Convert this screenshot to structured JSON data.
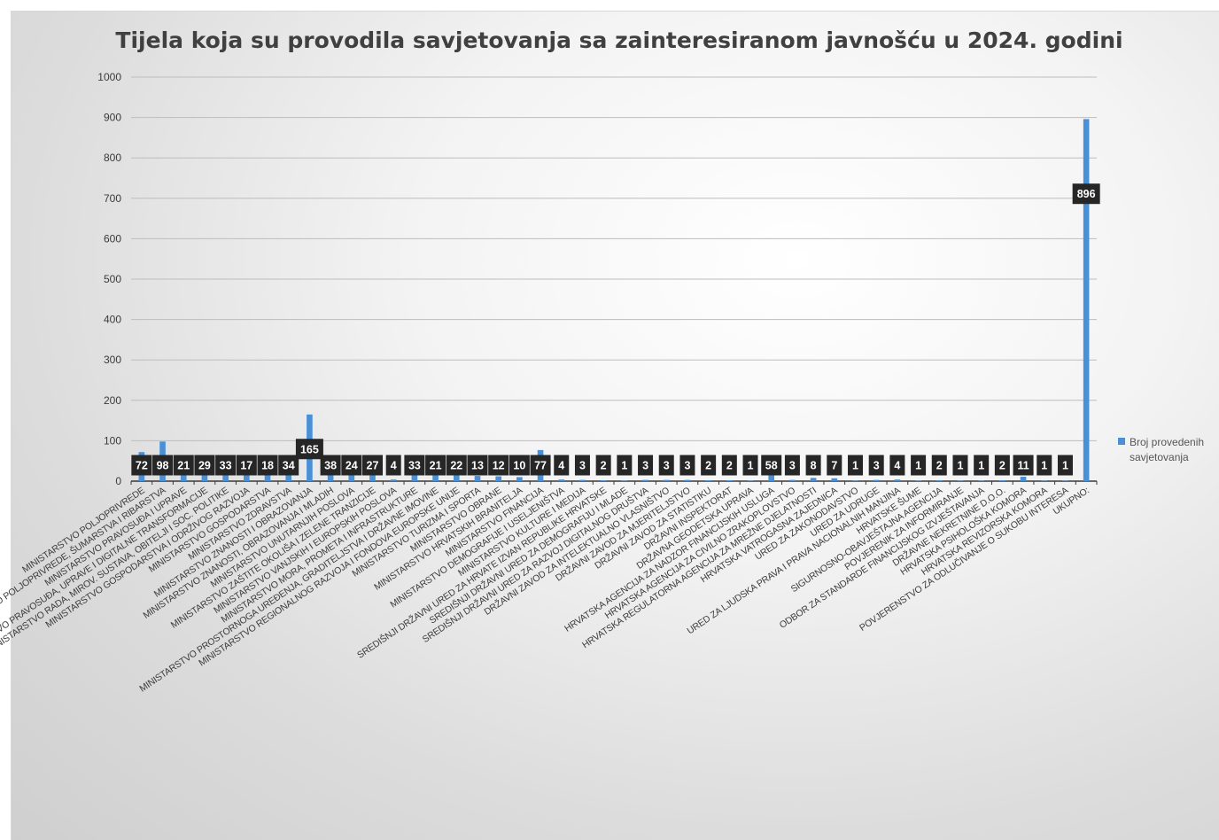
{
  "chart_data": {
    "type": "bar",
    "title": "Tijela koja su provodila savjetovanja sa zainteresiranom javnošću u 2024. godini",
    "xlabel": "",
    "ylabel": "",
    "ylim": [
      0,
      1000
    ],
    "yticks": [
      "0",
      "100",
      "200",
      "300",
      "400",
      "500",
      "600",
      "700",
      "800",
      "900",
      "1000"
    ],
    "grid": true,
    "legend_position": "right",
    "bar_color": "#4a90d6",
    "label_bg": "#262626",
    "series": [
      {
        "name": "Broj provedenih savjetovanja",
        "values": [
          72,
          98,
          21,
          29,
          33,
          17,
          18,
          34,
          165,
          38,
          24,
          27,
          4,
          33,
          21,
          22,
          13,
          12,
          10,
          77,
          4,
          3,
          2,
          1,
          3,
          3,
          3,
          2,
          2,
          1,
          58,
          3,
          8,
          7,
          1,
          3,
          4,
          1,
          2,
          1,
          1,
          2,
          11,
          1,
          1,
          896
        ]
      }
    ],
    "categories": [
      "MINISTARSTVO POLJOPRIVREDE",
      "MINISTARSTVO POLJOPRIVREDE, ŠUMARSTVA I RIBARSTVA",
      "MINISTARSTVO PRAVOSUĐA I UPRAVE",
      "MINISTARSTVO PRAVOSUĐA, UPRAVE I DIGITALNE TRANSFORMACIJE",
      "MINISTARSTVO RADA, MIROV. SUSTAVA, OBITELJI I SOC. POLITIKE",
      "MINISTARSTVO GOSPODARSTVA I ODRŽIVOG RAZVOJA",
      "MINISTARSTVO GOSPODARSTVA",
      "MINISTARSTVO ZDRAVSTVA",
      "MINISTARSTVO ZNANOSTI I OBRAZOVANJA",
      "MINISTARSTVO ZNANOSTI, OBRAZOVANJA I MLADIH",
      "MINISTARSTVO UNUTARNJIH POSLOVA",
      "MINISTARSTVO ZAŠTITE OKOLIŠA I ZELENE TRANZICIJE",
      "MINISTARSTVO VANJSKIH I EUROPSKIH POSLOVA",
      "MINISTARSTVO MORA, PROMETA I INFRASTRUKTURE",
      "MINISTARSTVO PROSTORNOGA UREĐENJA, GRADITELJSTVA I DRŽAVNE IMOVINE",
      "MINISTARSTVO REGIONALNOG RAZVOJA I FONDOVA EUROPSKE UNIJE",
      "MINISTARSTVO TURIZMA I SPORTA",
      "MINISTARSTVO OBRANE",
      "MINISTARSTVO HRVATSKIH BRANITELJA",
      "MINISTARSTVO FINANCIJA",
      "MINISTARSTVO DEMOGRAFIJE I USELJENIŠTVA",
      "MINISTARSTVO KULTURE I MEDIJA",
      "SREDIŠNJI DRŽAVNI URED ZA HRVATE IZVAN REPUBLIKE HRVATSKE",
      "SREDIŠNJI DRŽAVNI URED ZA DEMOGRAFIJU I MLADE",
      "SREDIŠNJI DRŽAVNI URED ZA RAZVOJ DIGITALNOG DRUŠTVA",
      "DRŽAVNI ZAVOD ZA INTELEKTUALNO VLASNIŠTVO",
      "DRŽAVNI ZAVOD ZA MJERITELJSTVO",
      "DRŽAVNI ZAVOD ZA STATISTIKU",
      "DRŽAVNI INSPEKTORAT",
      "DRŽAVNA GEODETSKA UPRAVA",
      "HRVATSKA AGENCIJA ZA NADZOR FINANCIJSKIH USLUGA",
      "HRVATSKA AGENCIJA ZA CIVILNO ZRAKOPLOVSTVO",
      "HRVATSKA REGULATORNA AGENCIJA ZA MREŽNE DJELATNOSTI",
      "HRVATSKA VATROGASNA ZAJEDNICA",
      "URED ZA ZAKONODAVSTVO",
      "URED ZA UDRUGE",
      "URED ZA LJUDSKA PRAVA I PRAVA NACIONALNIH MANJINA",
      "HRVATSKE ŠUME",
      "SIGURNOSNO-OBAVJEŠTAJNA AGENCIJA",
      "POVJERENIK ZA INFORMIRANJE",
      "ODBOR ZA STANDARDE FINANCIJSKOG IZVJEŠTAVANJA",
      "DRŽAVNE NEKRETNINE D.O.O.",
      "HRVATSKA PSIHOLOŠKA KOMORA",
      "HRVATSKA REVIZORSKA KOMORA",
      "POVJERENSTVO ZA ODLUČIVANJE O SUKOBU INTERESA",
      "UKUPNO:"
    ]
  }
}
